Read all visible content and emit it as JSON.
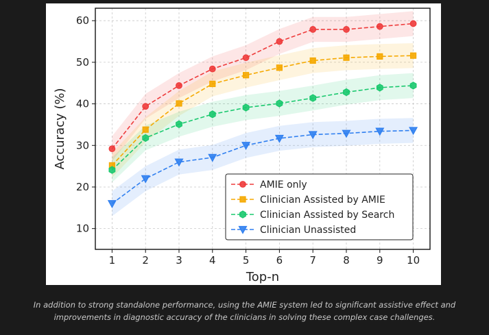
{
  "chart_data": {
    "type": "line",
    "title": "",
    "xlabel": "Top-n",
    "ylabel": "Accuracy (%)",
    "x": [
      1,
      2,
      3,
      4,
      5,
      6,
      7,
      8,
      9,
      10
    ],
    "xlim": [
      0.5,
      10.5
    ],
    "ylim": [
      5,
      63
    ],
    "yticks": [
      10,
      20,
      30,
      40,
      50,
      60
    ],
    "grid": true,
    "legend_position": "lower-right",
    "series": [
      {
        "name": "AMIE only",
        "color": "#ee3b3b",
        "marker": "circle",
        "values": [
          29.2,
          39.4,
          44.4,
          48.4,
          51.1,
          55.0,
          57.9,
          57.9,
          58.6,
          59.3
        ],
        "band": 3
      },
      {
        "name": "Clinician Assisted by AMIE",
        "color": "#f5a800",
        "marker": "square",
        "values": [
          25.2,
          33.8,
          40.1,
          44.8,
          46.9,
          48.7,
          50.4,
          51.1,
          51.4,
          51.6
        ],
        "band": 3
      },
      {
        "name": "Clinician Assisted by Search",
        "color": "#1ac86e",
        "marker": "hexagon",
        "values": [
          24.1,
          31.8,
          35.1,
          37.5,
          39.1,
          40.1,
          41.4,
          42.8,
          43.9,
          44.4
        ],
        "band": 3
      },
      {
        "name": "Clinician Unassisted",
        "color": "#2f7ff0",
        "marker": "triangle-down",
        "values": [
          16.0,
          22.0,
          26.0,
          27.1,
          30.0,
          31.7,
          32.6,
          32.9,
          33.4,
          33.6
        ],
        "band": 3
      }
    ]
  },
  "caption": "In addition to strong standalone performance, using the AMIE system led to significant assistive effect and improvements in diagnostic accuracy of the clinicians in solving these complex case challenges."
}
